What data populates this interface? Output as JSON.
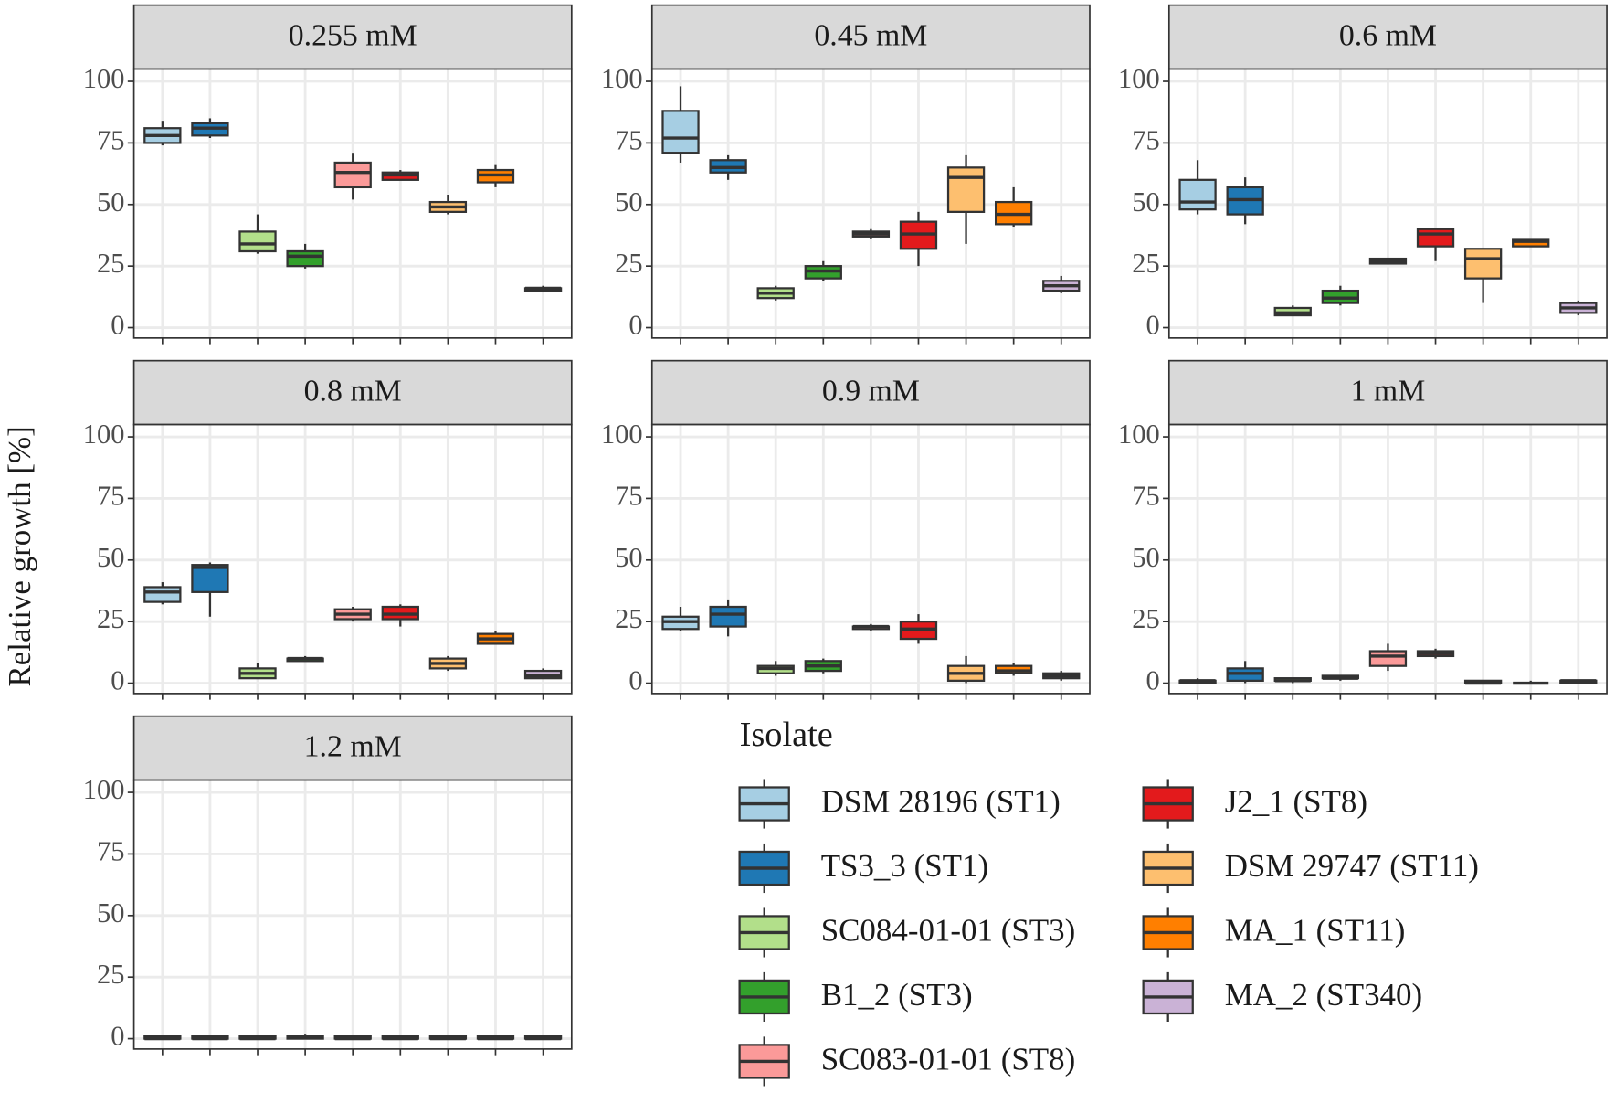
{
  "chart_data": {
    "type": "box",
    "ylabel": "Relative growth [%]",
    "legend_title": "Isolate",
    "ylim": [
      -4.2,
      105
    ],
    "yticks": [
      0,
      25,
      50,
      75,
      100
    ],
    "grid": true,
    "series": [
      {
        "name": "DSM 28196 (ST1)",
        "color": "#a6cee3"
      },
      {
        "name": "TS3_3 (ST1)",
        "color": "#1f78b4"
      },
      {
        "name": "SC084-01-01 (ST3)",
        "color": "#b2df8a"
      },
      {
        "name": "B1_2 (ST3)",
        "color": "#33a02c"
      },
      {
        "name": "SC083-01-01 (ST8)",
        "color": "#fb9a99"
      },
      {
        "name": "J2_1 (ST8)",
        "color": "#e31a1c"
      },
      {
        "name": "DSM 29747 (ST11)",
        "color": "#fdbf6f"
      },
      {
        "name": "MA_1 (ST11)",
        "color": "#ff7f00"
      },
      {
        "name": "MA_2 (ST340)",
        "color": "#cab2d6"
      }
    ],
    "panels": [
      {
        "title": "0.255 mM",
        "values": [
          [
            74,
            75,
            78,
            81,
            84
          ],
          [
            77,
            78,
            81,
            83,
            85
          ],
          [
            30,
            31,
            34,
            39,
            46
          ],
          [
            24,
            25,
            29,
            31,
            34
          ],
          [
            52,
            57,
            63,
            67,
            71
          ],
          [
            60,
            60,
            62,
            63,
            64
          ],
          [
            46,
            47,
            49,
            51,
            54
          ],
          [
            57,
            59,
            62,
            64,
            66
          ],
          [
            15,
            15,
            16,
            16,
            17
          ]
        ]
      },
      {
        "title": "0.45 mM",
        "values": [
          [
            67,
            71,
            77,
            88,
            98
          ],
          [
            60,
            63,
            65,
            68,
            70
          ],
          [
            11,
            12,
            14,
            16,
            17
          ],
          [
            19,
            20,
            23,
            25,
            27
          ],
          [
            36,
            37,
            38,
            39,
            40
          ],
          [
            25,
            32,
            38,
            43,
            47
          ],
          [
            34,
            47,
            61,
            65,
            70
          ],
          [
            41,
            42,
            46,
            51,
            57
          ],
          [
            14,
            15,
            17,
            19,
            21
          ]
        ]
      },
      {
        "title": "0.6 mM",
        "values": [
          [
            46,
            48,
            51,
            60,
            68
          ],
          [
            42,
            46,
            52,
            57,
            61
          ],
          [
            5,
            5,
            6,
            8,
            9
          ],
          [
            9,
            10,
            12,
            15,
            17
          ],
          [
            26,
            26,
            27,
            28,
            28
          ],
          [
            27,
            33,
            38,
            40,
            40
          ],
          [
            10,
            20,
            28,
            32,
            32
          ],
          [
            33,
            33,
            35,
            36,
            36
          ],
          [
            5,
            6,
            8,
            10,
            11
          ]
        ]
      },
      {
        "title": "0.8 mM",
        "values": [
          [
            32,
            33,
            37,
            39,
            41
          ],
          [
            27,
            37,
            47,
            48,
            49
          ],
          [
            2,
            2,
            4,
            6,
            8
          ],
          [
            9,
            9,
            10,
            10,
            11
          ],
          [
            25,
            26,
            28,
            30,
            31
          ],
          [
            23,
            26,
            28,
            31,
            32
          ],
          [
            5,
            6,
            8,
            10,
            11
          ],
          [
            16,
            16,
            18,
            20,
            21
          ],
          [
            2,
            2,
            3,
            5,
            6
          ]
        ]
      },
      {
        "title": "0.9 mM",
        "values": [
          [
            21,
            22,
            25,
            27,
            31
          ],
          [
            19,
            23,
            28,
            31,
            34
          ],
          [
            3,
            4,
            6,
            7,
            9
          ],
          [
            4,
            5,
            7,
            9,
            10
          ],
          [
            21,
            22,
            23,
            23,
            24
          ],
          [
            16,
            18,
            22,
            25,
            28
          ],
          [
            0,
            1,
            4,
            7,
            11
          ],
          [
            3,
            4,
            5,
            7,
            8
          ],
          [
            1,
            2,
            3,
            4,
            5
          ]
        ]
      },
      {
        "title": "1 mM",
        "values": [
          [
            0,
            0,
            1,
            1,
            2
          ],
          [
            0,
            1,
            4,
            6,
            9
          ],
          [
            0,
            1,
            1,
            2,
            2
          ],
          [
            1,
            2,
            2,
            3,
            3
          ],
          [
            5,
            7,
            11,
            13,
            16
          ],
          [
            10,
            11,
            12,
            13,
            14
          ],
          [
            0,
            0,
            0,
            1,
            1
          ],
          [
            0,
            0,
            0,
            0,
            1
          ],
          [
            0,
            0,
            1,
            1,
            1
          ]
        ]
      },
      {
        "title": "1.2 mM",
        "values": [
          [
            0,
            0,
            0,
            1,
            1
          ],
          [
            0,
            0,
            0,
            1,
            1
          ],
          [
            0,
            0,
            0,
            1,
            1
          ],
          [
            0,
            0,
            1,
            1,
            2
          ],
          [
            0,
            0,
            0,
            1,
            1
          ],
          [
            0,
            0,
            0,
            1,
            1
          ],
          [
            0,
            0,
            0,
            1,
            1
          ],
          [
            0,
            0,
            0,
            1,
            1
          ],
          [
            0,
            0,
            0,
            1,
            1
          ]
        ]
      }
    ]
  }
}
